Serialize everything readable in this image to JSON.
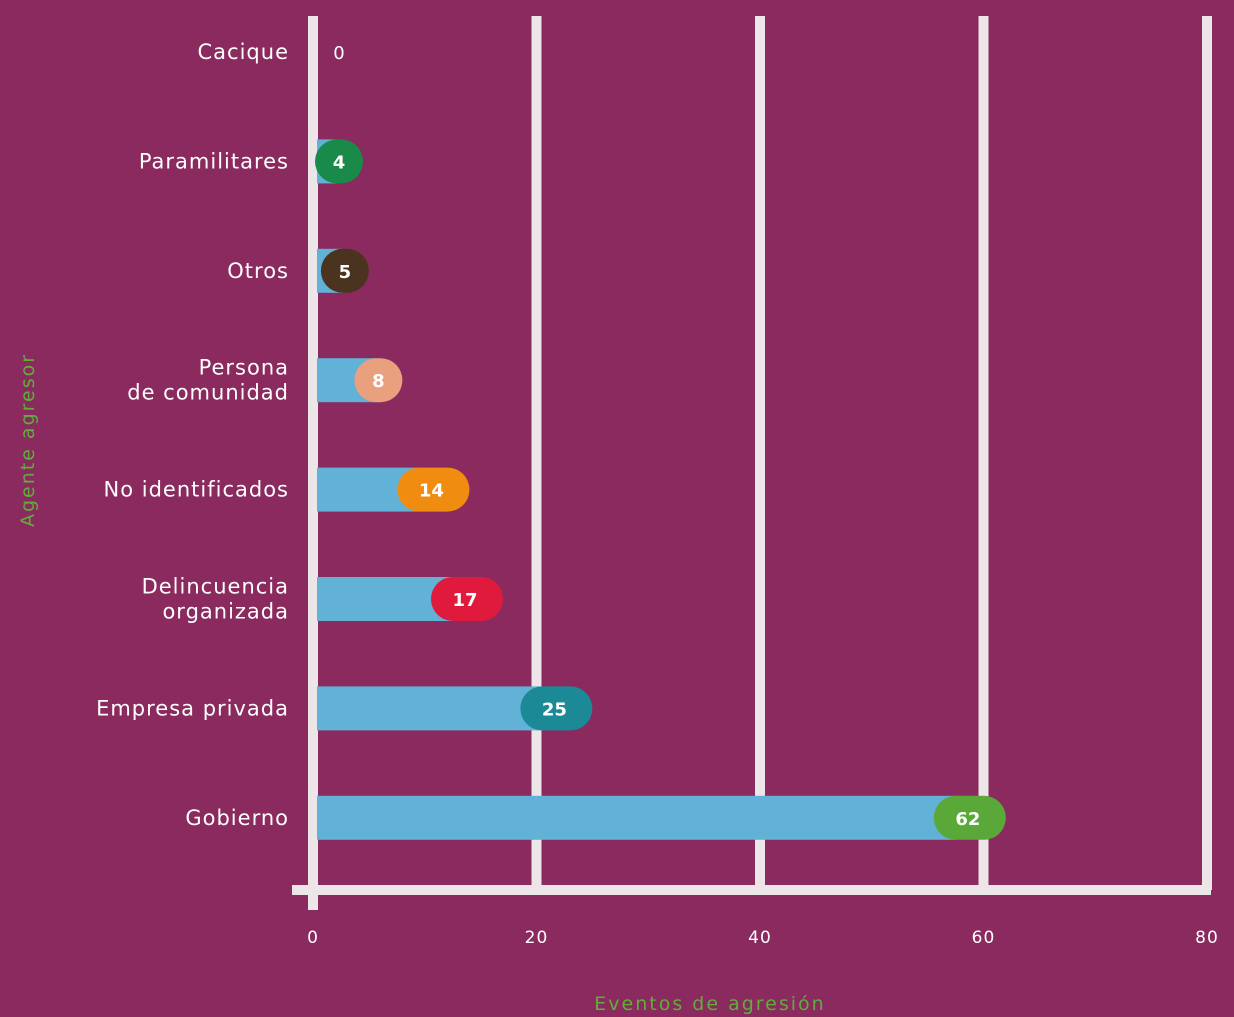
{
  "chart_data": {
    "type": "bar",
    "orientation": "horizontal",
    "categories": [
      "Cacique",
      "Paramilitares",
      "Otros",
      "Persona de comunidad",
      "No identificados",
      "Delincuencia organizada",
      "Empresa privada",
      "Gobierno"
    ],
    "category_lines": [
      [
        "Cacique"
      ],
      [
        "Paramilitares"
      ],
      [
        "Otros"
      ],
      [
        "Persona",
        "de comunidad"
      ],
      [
        "No identificados"
      ],
      [
        "Delincuencia",
        "organizada"
      ],
      [
        "Empresa privada"
      ],
      [
        "Gobierno"
      ]
    ],
    "values": [
      0,
      4,
      5,
      8,
      14,
      17,
      25,
      62
    ],
    "bubble_colors": [
      null,
      "#1a8a4a",
      "#4a3420",
      "#e8a07e",
      "#f08c10",
      "#e01a3c",
      "#1c8a96",
      "#5aa838"
    ],
    "bar_color": "#62b1d6",
    "xlim": [
      0,
      80
    ],
    "xticks": [
      0,
      20,
      40,
      60,
      80
    ],
    "xlabel": "Eventos de agresión",
    "ylabel": "Agente agresor",
    "grid": true
  },
  "colors": {
    "background": "#8a2a5e",
    "grid": "#ece6e8",
    "axis_title": "#5fae3a"
  }
}
